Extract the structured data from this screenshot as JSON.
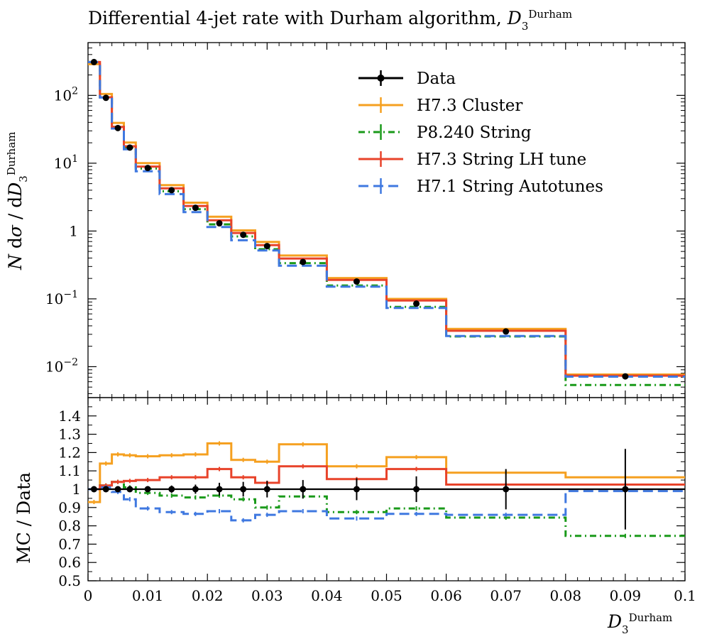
{
  "chart_data": {
    "type": "line",
    "title": "Differential 4-jet rate with Durham algorithm, D_3^{Durham}",
    "xlabel": "D_3^{Durham}",
    "ylabel_main": "N dσ / dD_3^{Durham}",
    "ylabel_ratio": "MC / Data",
    "xlim": [
      0,
      0.1
    ],
    "ylim_main": [
      0.0035,
      600
    ],
    "ylim_ratio": [
      0.5,
      1.5
    ],
    "yscale_main": "log",
    "legend_position": "top-right",
    "bin_edges": [
      0,
      0.002,
      0.004,
      0.006,
      0.008,
      0.012,
      0.016,
      0.02,
      0.024,
      0.028,
      0.032,
      0.04,
      0.05,
      0.06,
      0.08,
      0.1
    ],
    "x_ticks": [
      "0",
      "0.01",
      "0.02",
      "0.03",
      "0.04",
      "0.05",
      "0.06",
      "0.07",
      "0.08",
      "0.09",
      "0.1"
    ],
    "y_ticks_main": [
      {
        "value": 100,
        "label": "10^2"
      },
      {
        "value": 10,
        "label": "10^1"
      },
      {
        "value": 1,
        "label": "1"
      },
      {
        "value": 0.1,
        "label": "10^-1"
      },
      {
        "value": 0.01,
        "label": "10^-2"
      }
    ],
    "y_ticks_ratio": [
      "0.5",
      "0.6",
      "0.7",
      "0.8",
      "0.9",
      "1",
      "1.1",
      "1.2",
      "1.3",
      "1.4"
    ],
    "series": [
      {
        "name": "Data",
        "color": "#000000",
        "style": "points",
        "values": [
          310,
          92,
          33,
          17,
          8.5,
          4.0,
          2.2,
          1.3,
          0.88,
          0.6,
          0.35,
          0.18,
          0.085,
          0.033,
          0.0072
        ],
        "ratio": [
          1,
          1,
          1,
          1,
          1,
          1,
          1,
          1,
          1,
          1,
          1,
          1,
          1,
          1,
          1
        ],
        "ratio_err": [
          0.015,
          0.012,
          0.01,
          0.012,
          0.015,
          0.02,
          0.025,
          0.035,
          0.04,
          0.045,
          0.05,
          0.06,
          0.07,
          0.11,
          0.22
        ]
      },
      {
        "name": "H7.3 Cluster",
        "color": "#f5a020",
        "style": "solid",
        "ratio": [
          0.93,
          1.14,
          1.19,
          1.185,
          1.18,
          1.185,
          1.19,
          1.25,
          1.16,
          1.15,
          1.245,
          1.125,
          1.175,
          1.09,
          1.065
        ]
      },
      {
        "name": "P8.240 String",
        "color": "#1a9a1a",
        "style": "dashdot",
        "ratio": [
          1.0,
          1.02,
          1.04,
          1.01,
          0.98,
          0.965,
          0.955,
          0.965,
          0.945,
          0.9,
          0.96,
          0.875,
          0.895,
          0.845,
          0.745
        ]
      },
      {
        "name": "H7.3 String LH tune",
        "color": "#e8432a",
        "style": "solid",
        "ratio": [
          1.0,
          1.02,
          1.04,
          1.045,
          1.05,
          1.065,
          1.065,
          1.11,
          1.065,
          1.035,
          1.125,
          1.055,
          1.11,
          1.025,
          1.025
        ]
      },
      {
        "name": "H7.1 String Autotunes",
        "color": "#3f78e0",
        "style": "dashed",
        "ratio": [
          1.0,
          1.01,
          0.985,
          0.945,
          0.895,
          0.875,
          0.865,
          0.88,
          0.83,
          0.86,
          0.88,
          0.84,
          0.865,
          0.86,
          0.99
        ]
      }
    ]
  }
}
